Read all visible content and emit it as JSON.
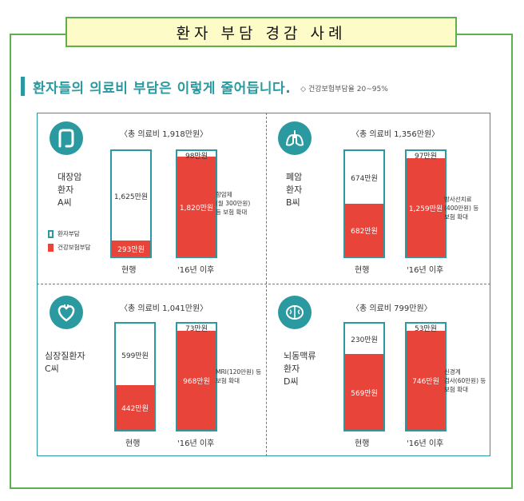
{
  "title": "환자 부담 경감 사례",
  "headline": "환자들의 의료비 부담은 이렇게 줄어듭니다.",
  "headline_note": "◇ 건강보험부담율 20~95%",
  "legend": [
    {
      "label": "환자부담",
      "color": "#ffffff",
      "border": "#2a9aa0"
    },
    {
      "label": "건강보험부담",
      "color": "#e8443a",
      "border": "#e8443a"
    }
  ],
  "colors": {
    "accent": "#2a9aa0",
    "insurance": "#e8443a",
    "frame": "#5eb04b"
  },
  "chart_data": [
    {
      "type": "bar",
      "patient": "대장암 환자 A씨",
      "icon": "colon-icon",
      "total_label": "〈총 의료비 1,918만원〉",
      "categories": [
        "현행",
        "'16년 이후"
      ],
      "series": [
        {
          "name": "환자부담",
          "values": [
            1625,
            98
          ],
          "labels": [
            "1,625만원",
            "98만원"
          ]
        },
        {
          "name": "건강보험부담",
          "values": [
            293,
            1820
          ],
          "labels": [
            "293만원",
            "1,820만원"
          ]
        }
      ],
      "annotation": [
        "항암제",
        "(월 300만원)",
        "등 보험 확대"
      ]
    },
    {
      "type": "bar",
      "patient": "폐암 환자 B씨",
      "icon": "lungs-icon",
      "total_label": "〈총 의료비 1,356만원〉",
      "categories": [
        "현행",
        "'16년 이후"
      ],
      "series": [
        {
          "name": "환자부담",
          "values": [
            674,
            97
          ],
          "labels": [
            "674만원",
            "97만원"
          ]
        },
        {
          "name": "건강보험부담",
          "values": [
            682,
            1259
          ],
          "labels": [
            "682만원",
            "1,259만원"
          ]
        }
      ],
      "annotation": [
        "방사선치료",
        "(400만원) 등",
        "보험 확대"
      ]
    },
    {
      "type": "bar",
      "patient": "심장질환자 C씨",
      "icon": "heart-icon",
      "total_label": "〈총 의료비 1,041만원〉",
      "categories": [
        "현행",
        "'16년 이후"
      ],
      "series": [
        {
          "name": "환자부담",
          "values": [
            599,
            73
          ],
          "labels": [
            "599만원",
            "73만원"
          ]
        },
        {
          "name": "건강보험부담",
          "values": [
            442,
            968
          ],
          "labels": [
            "442만원",
            "968만원"
          ]
        }
      ],
      "annotation": [
        "MRI(120만원) 등",
        "보험 확대"
      ]
    },
    {
      "type": "bar",
      "patient": "뇌동맥류 환자 D씨",
      "icon": "brain-icon",
      "total_label": "〈총 의료비 799만원〉",
      "categories": [
        "현행",
        "'16년 이후"
      ],
      "series": [
        {
          "name": "환자부담",
          "values": [
            230,
            53
          ],
          "labels": [
            "230만원",
            "53만원"
          ]
        },
        {
          "name": "건강보험부담",
          "values": [
            569,
            746
          ],
          "labels": [
            "569만원",
            "746만원"
          ]
        }
      ],
      "annotation": [
        "신경계",
        "검사(60만원) 등",
        "보험 확대"
      ]
    }
  ]
}
